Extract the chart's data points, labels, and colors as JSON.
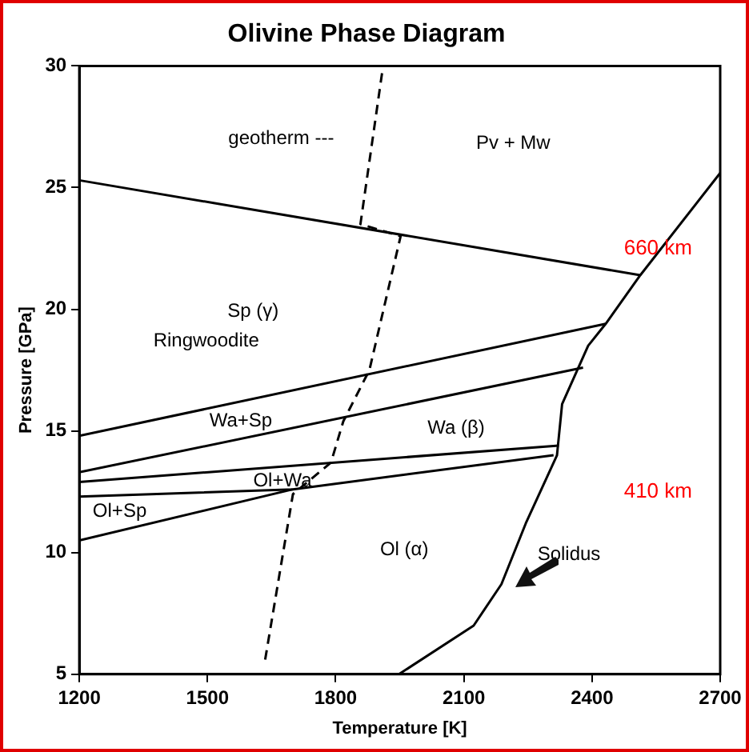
{
  "chart_data": {
    "type": "line",
    "title": "Olivine Phase Diagram",
    "xlabel": "Temperature [K]",
    "ylabel": "Pressure [GPa]",
    "xlim": [
      1200,
      2700
    ],
    "xticks": [
      1200,
      1500,
      1800,
      2100,
      2400,
      2700
    ],
    "ylim": [
      5,
      30
    ],
    "yticks": [
      5,
      10,
      15,
      20,
      25,
      30
    ],
    "grid": false,
    "legend": false,
    "marker": "none",
    "line_style": "solid",
    "series": [
      {
        "color": "#000000",
        "x": [
          1200,
          2513
        ],
        "values": [
          25.3,
          21.4
        ]
      },
      {
        "color": "#000000",
        "x": [
          1948,
          2123,
          2188,
          2245,
          2318,
          2330,
          2391,
          2432,
          2513,
          2700
        ],
        "values": [
          5,
          7.0,
          8.7,
          11.2,
          14.0,
          16.1,
          18.5,
          19.4,
          21.4,
          25.6
        ]
      },
      {
        "color": "#000000",
        "x": [
          1200,
          2432
        ],
        "values": [
          14.8,
          19.4
        ]
      },
      {
        "color": "#000000",
        "x": [
          1200,
          2379
        ],
        "values": [
          13.3,
          17.6
        ]
      },
      {
        "color": "#000000",
        "x": [
          1200,
          2322
        ],
        "values": [
          12.9,
          14.4
        ]
      },
      {
        "color": "#000000",
        "x": [
          1200,
          1700,
          2310
        ],
        "values": [
          12.3,
          12.6,
          14.0
        ]
      },
      {
        "color": "#000000",
        "x": [
          1200,
          1700
        ],
        "values": [
          10.5,
          12.6
        ]
      },
      {
        "color": "#000000",
        "line_style": "dashed",
        "x": [
          1635,
          1700,
          1789,
          1818,
          1879,
          1952,
          1858,
          1911
        ],
        "values": [
          5.6,
          12.4,
          13.7,
          15.4,
          17.5,
          23.0,
          23.5,
          30
        ]
      }
    ],
    "annotations": [
      "geotherm ---",
      "Pv + Mw",
      "660 km",
      "Sp (γ)",
      "Ringwoodite",
      "Wa+Sp",
      "Wa (β)",
      "Ol+Wa",
      "Ol+Sp",
      "410 km",
      "Ol (α)",
      "Solidus"
    ]
  }
}
